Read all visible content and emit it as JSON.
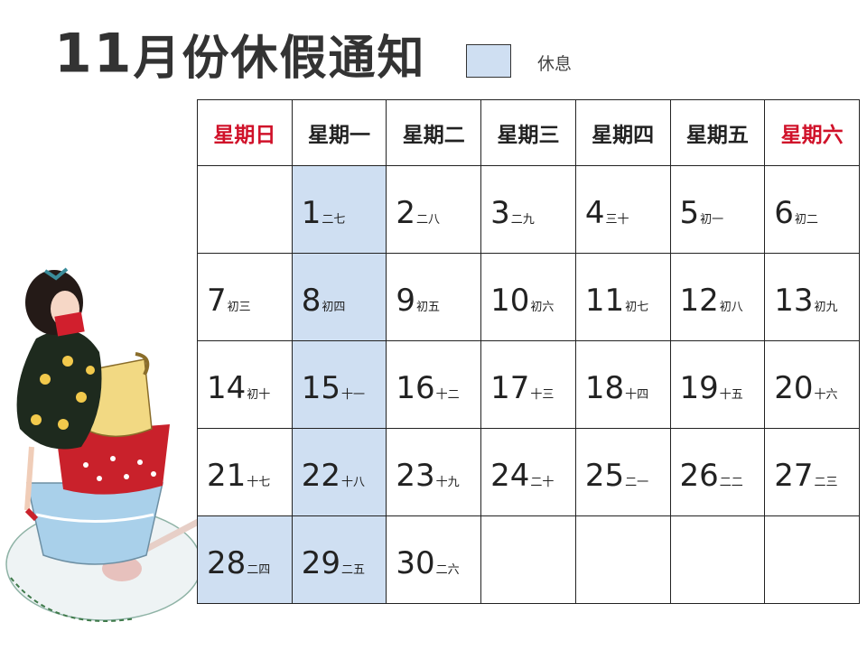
{
  "title": {
    "number": "11",
    "text": "月份休假通知"
  },
  "legend": {
    "label": "休息",
    "color": "#cfdff2"
  },
  "colors": {
    "weekend_header": "#d0122a",
    "rest": "#cfdff2"
  },
  "weekdays": [
    {
      "label": "星期日",
      "weekend": true
    },
    {
      "label": "星期一",
      "weekend": false
    },
    {
      "label": "星期二",
      "weekend": false
    },
    {
      "label": "星期三",
      "weekend": false
    },
    {
      "label": "星期四",
      "weekend": false
    },
    {
      "label": "星期五",
      "weekend": false
    },
    {
      "label": "星期六",
      "weekend": true
    }
  ],
  "weeks": [
    [
      null,
      {
        "day": "1",
        "lunar": "二七",
        "rest": true
      },
      {
        "day": "2",
        "lunar": "二八"
      },
      {
        "day": "3",
        "lunar": "二九"
      },
      {
        "day": "4",
        "lunar": "三十"
      },
      {
        "day": "5",
        "lunar": "初一"
      },
      {
        "day": "6",
        "lunar": "初二"
      }
    ],
    [
      {
        "day": "7",
        "lunar": "初三"
      },
      {
        "day": "8",
        "lunar": "初四",
        "rest": true
      },
      {
        "day": "9",
        "lunar": "初五"
      },
      {
        "day": "10",
        "lunar": "初六"
      },
      {
        "day": "11",
        "lunar": "初七"
      },
      {
        "day": "12",
        "lunar": "初八"
      },
      {
        "day": "13",
        "lunar": "初九"
      }
    ],
    [
      {
        "day": "14",
        "lunar": "初十"
      },
      {
        "day": "15",
        "lunar": "十一",
        "rest": true
      },
      {
        "day": "16",
        "lunar": "十二"
      },
      {
        "day": "17",
        "lunar": "十三"
      },
      {
        "day": "18",
        "lunar": "十四"
      },
      {
        "day": "19",
        "lunar": "十五"
      },
      {
        "day": "20",
        "lunar": "十六"
      }
    ],
    [
      {
        "day": "21",
        "lunar": "十七"
      },
      {
        "day": "22",
        "lunar": "十八",
        "rest": true
      },
      {
        "day": "23",
        "lunar": "十九"
      },
      {
        "day": "24",
        "lunar": "二十"
      },
      {
        "day": "25",
        "lunar": "二一"
      },
      {
        "day": "26",
        "lunar": "二二"
      },
      {
        "day": "27",
        "lunar": "二三"
      }
    ],
    [
      {
        "day": "28",
        "lunar": "二四",
        "rest": true
      },
      {
        "day": "29",
        "lunar": "二五",
        "rest": true
      },
      {
        "day": "30",
        "lunar": "二六"
      },
      null,
      null,
      null,
      null
    ]
  ]
}
